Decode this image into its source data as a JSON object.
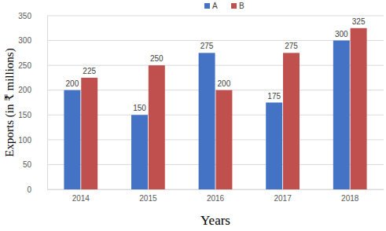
{
  "chart_data": {
    "type": "bar",
    "x_label": "Years",
    "y_label": "Exports (in ₹ millions)",
    "categories": [
      "2014",
      "2015",
      "2016",
      "2017",
      "2018"
    ],
    "series": [
      {
        "name": "A",
        "color": "#4472c4",
        "values": [
          200,
          150,
          275,
          175,
          300
        ]
      },
      {
        "name": "B",
        "color": "#c0504d",
        "values": [
          225,
          250,
          200,
          275,
          325
        ]
      }
    ],
    "ylim": [
      0,
      350
    ],
    "yticks": [
      0,
      50,
      100,
      150,
      200,
      250,
      300,
      350
    ],
    "grid": true,
    "legend": "top",
    "data_labels": true
  }
}
